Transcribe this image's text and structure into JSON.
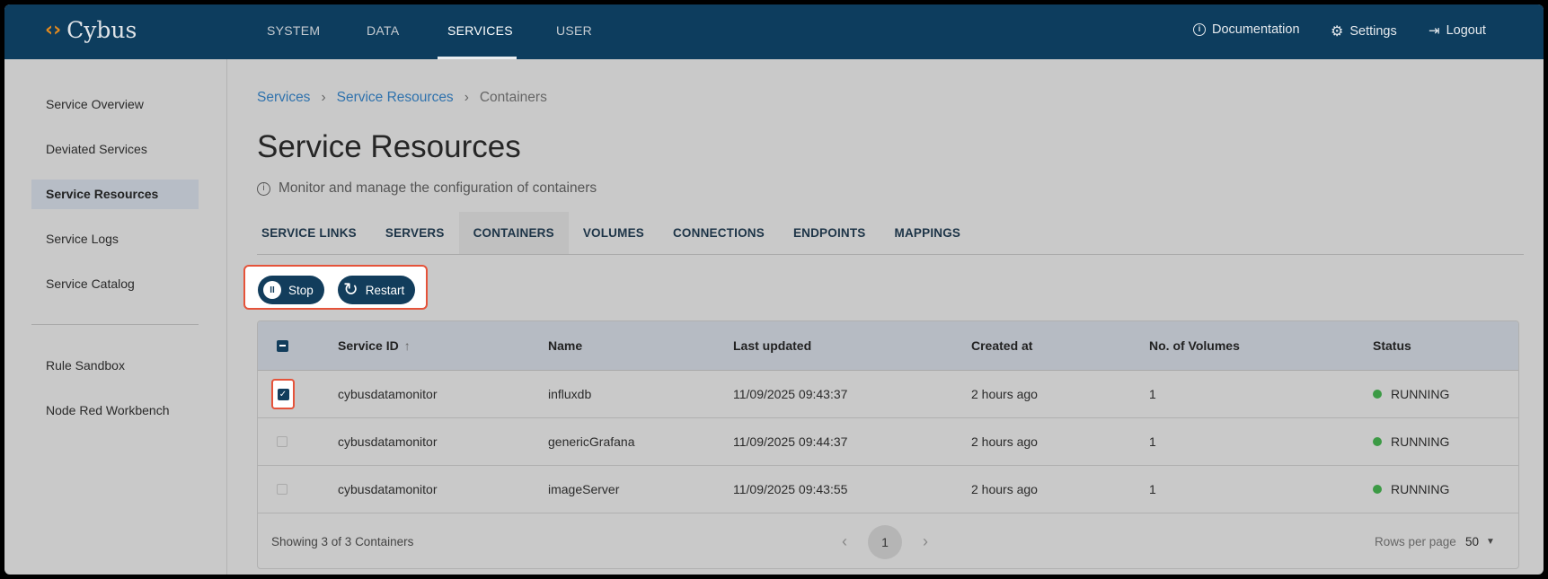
{
  "header": {
    "logo": "Cybus",
    "nav": [
      "SYSTEM",
      "DATA",
      "SERVICES",
      "USER"
    ],
    "active_nav": "SERVICES",
    "right": {
      "documentation": "Documentation",
      "settings": "Settings",
      "logout": "Logout"
    }
  },
  "sidebar": {
    "items": [
      "Service Overview",
      "Deviated Services",
      "Service Resources",
      "Service Logs",
      "Service Catalog"
    ],
    "selected": "Service Resources",
    "extra_items": [
      "Rule Sandbox",
      "Node Red Workbench"
    ]
  },
  "breadcrumb": [
    "Services",
    "Service Resources",
    "Containers"
  ],
  "page": {
    "title": "Service Resources",
    "info": "Monitor and manage the configuration of containers"
  },
  "tabs": [
    "SERVICE LINKS",
    "SERVERS",
    "CONTAINERS",
    "VOLUMES",
    "CONNECTIONS",
    "ENDPOINTS",
    "MAPPINGS"
  ],
  "active_tab": "CONTAINERS",
  "actions": {
    "stop": "Stop",
    "restart": "Restart"
  },
  "table": {
    "columns": [
      "Service ID",
      "Name",
      "Last updated",
      "Created at",
      "No. of Volumes",
      "Status"
    ],
    "sort": {
      "column": "Service ID",
      "direction": "ascending"
    },
    "rows": [
      {
        "checked": true,
        "service_id": "cybusdatamonitor",
        "name": "influxdb",
        "last_updated": "11/09/2025 09:43:37",
        "created_at": "2 hours ago",
        "volumes": "1",
        "status": "RUNNING"
      },
      {
        "checked": false,
        "service_id": "cybusdatamonitor",
        "name": "genericGrafana",
        "last_updated": "11/09/2025 09:44:37",
        "created_at": "2 hours ago",
        "volumes": "1",
        "status": "RUNNING"
      },
      {
        "checked": false,
        "service_id": "cybusdatamonitor",
        "name": "imageServer",
        "last_updated": "11/09/2025 09:43:55",
        "created_at": "2 hours ago",
        "volumes": "1",
        "status": "RUNNING"
      }
    ],
    "footer": {
      "showing": "Showing 3 of 3 Containers",
      "page": "1",
      "rows_per_page_label": "Rows per page",
      "rows_per_page": "50"
    }
  },
  "colors": {
    "header": "#0d3d5e",
    "accent": "#2f72ad",
    "running": "#3c9a45",
    "highlight": "#e5533a",
    "button": "#123d5c"
  }
}
